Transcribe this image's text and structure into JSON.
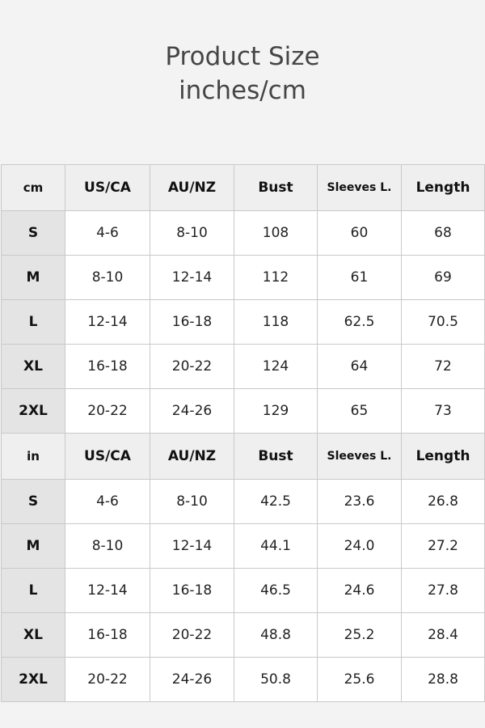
{
  "title": {
    "line1": "Product Size",
    "line2": "inches/cm"
  },
  "columns": [
    "US/CA",
    "AU/NZ",
    "Bust",
    "Sleeves L.",
    "Length"
  ],
  "sections": [
    {
      "unit": "cm",
      "rows": [
        {
          "size": "S",
          "values": [
            "4-6",
            "8-10",
            "108",
            "60",
            "68"
          ]
        },
        {
          "size": "M",
          "values": [
            "8-10",
            "12-14",
            "112",
            "61",
            "69"
          ]
        },
        {
          "size": "L",
          "values": [
            "12-14",
            "16-18",
            "118",
            "62.5",
            "70.5"
          ]
        },
        {
          "size": "XL",
          "values": [
            "16-18",
            "20-22",
            "124",
            "64",
            "72"
          ]
        },
        {
          "size": "2XL",
          "values": [
            "20-22",
            "24-26",
            "129",
            "65",
            "73"
          ]
        }
      ]
    },
    {
      "unit": "in",
      "rows": [
        {
          "size": "S",
          "values": [
            "4-6",
            "8-10",
            "42.5",
            "23.6",
            "26.8"
          ]
        },
        {
          "size": "M",
          "values": [
            "8-10",
            "12-14",
            "44.1",
            "24.0",
            "27.2"
          ]
        },
        {
          "size": "L",
          "values": [
            "12-14",
            "16-18",
            "46.5",
            "24.6",
            "27.8"
          ]
        },
        {
          "size": "XL",
          "values": [
            "16-18",
            "20-22",
            "48.8",
            "25.2",
            "28.4"
          ]
        },
        {
          "size": "2XL",
          "values": [
            "20-22",
            "24-26",
            "50.8",
            "25.6",
            "28.8"
          ]
        }
      ]
    }
  ]
}
